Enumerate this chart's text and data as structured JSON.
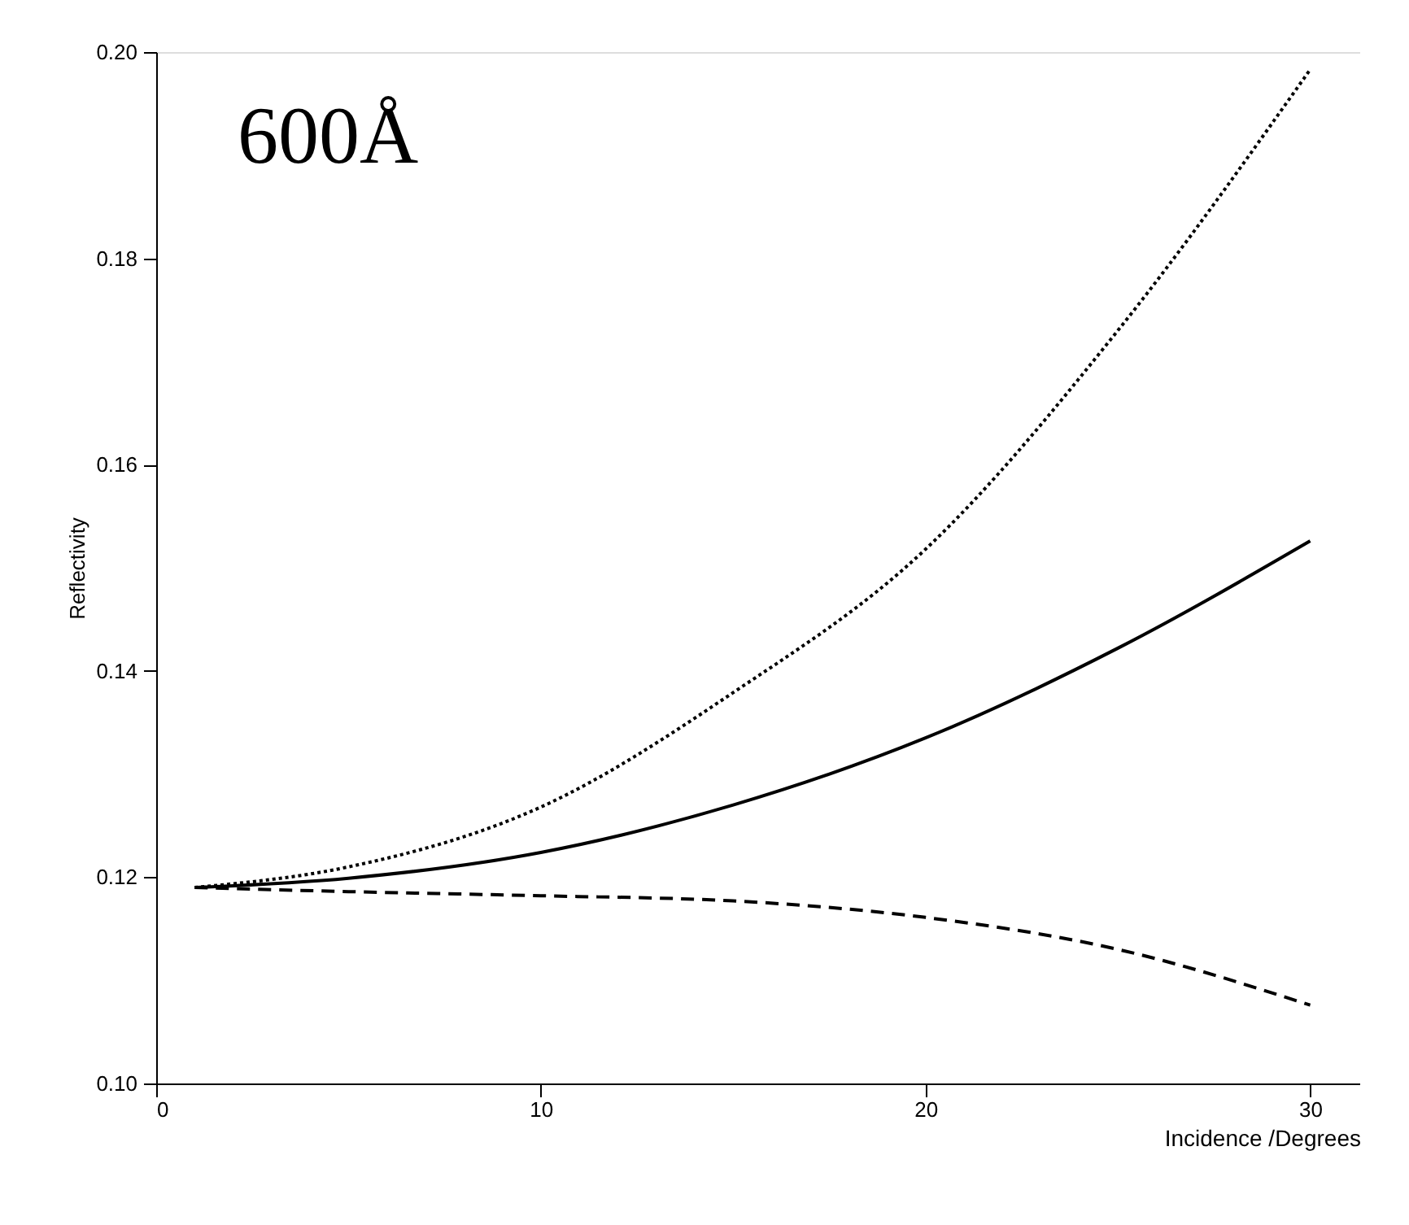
{
  "chart_data": {
    "type": "line",
    "xlabel": "Incidence /Degrees",
    "ylabel": "Reflectivity",
    "annotations": [
      "600Å"
    ],
    "xlim": [
      0,
      31.3
    ],
    "xticks": [
      0,
      10,
      20,
      30
    ],
    "ylim": [
      0.1,
      0.2
    ],
    "yticks": [
      {
        "value": 0.1,
        "label": "0.10"
      },
      {
        "value": 0.12,
        "label": "0.12"
      },
      {
        "value": 0.14,
        "label": "0.14"
      },
      {
        "value": 0.16,
        "label": "0.16"
      },
      {
        "value": 0.18,
        "label": "0.18"
      },
      {
        "value": 0.2,
        "label": "0.20"
      }
    ],
    "grid": false,
    "legend": false,
    "x": [
      1,
      5,
      10,
      15,
      20,
      25,
      30
    ],
    "series": [
      {
        "color": "#000000",
        "line_style": "dotted",
        "values": [
          0.119,
          0.121,
          0.1268,
          0.1379,
          0.1518,
          0.173,
          0.1983
        ]
      },
      {
        "color": "#000000",
        "line_style": "solid",
        "values": [
          0.119,
          0.1199,
          0.1224,
          0.127,
          0.1335,
          0.1422,
          0.1526
        ]
      },
      {
        "color": "#000000",
        "line_style": "dashed",
        "values": [
          0.119,
          0.1186,
          0.1182,
          0.1177,
          0.1161,
          0.113,
          0.1076
        ]
      }
    ]
  }
}
